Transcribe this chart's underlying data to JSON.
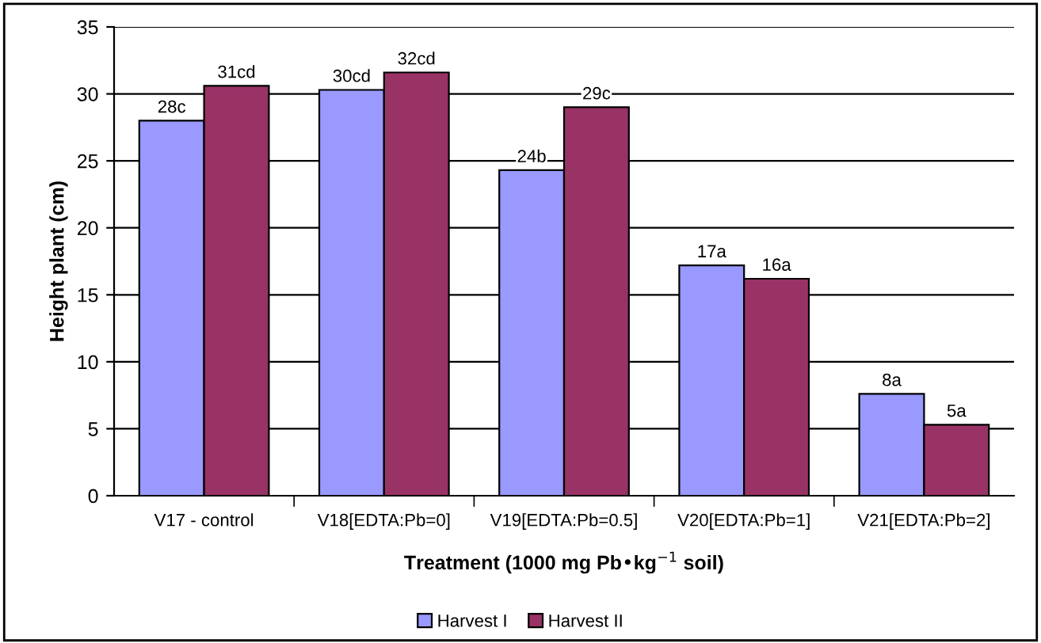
{
  "chart_data": {
    "type": "bar",
    "xlabel": "Treatment (1000 mg Pb•kg$^{−1}$ soil)",
    "ylabel": "Height plant (cm)",
    "categories": [
      "V17 - control",
      "V18[EDTA:Pb=0]",
      "V19[EDTA:Pb=0.5]",
      "V20[EDTA:Pb=1]",
      "V21[EDTA:Pb=2]"
    ],
    "series": [
      {
        "name": "Harvest I",
        "color": "#9999ff",
        "values": [
          28.0,
          30.3,
          24.3,
          17.2,
          7.6
        ],
        "value_labels": [
          "28c",
          "30cd",
          "24b",
          "17a",
          "8a"
        ]
      },
      {
        "name": "Harvest II",
        "color": "#993366",
        "values": [
          30.6,
          31.6,
          29.0,
          16.2,
          5.3
        ],
        "value_labels": [
          "31cd",
          "32cd",
          "29c",
          "16a",
          "5a"
        ]
      }
    ],
    "ylim": [
      0,
      35
    ],
    "yticks": [
      0,
      5,
      10,
      15,
      20,
      25,
      30,
      35
    ],
    "grid": "y",
    "legend": "bottom"
  }
}
